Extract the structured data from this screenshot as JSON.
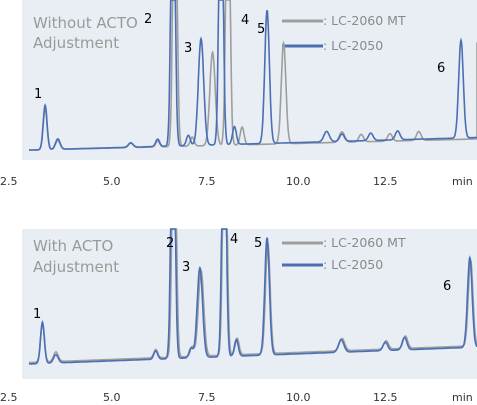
{
  "colors": {
    "lc2060": "#9e9e9e",
    "lc2050": "#4a6fb5",
    "panel": "#e9edf4"
  },
  "panels": [
    {
      "title_lines": [
        "Without ACTO",
        "Adjustment"
      ],
      "legend": [
        ": LC-2060 MT",
        ": LC-2050"
      ],
      "xticks": [
        "2.5",
        "5.0",
        "7.5",
        "10.0",
        "12.5"
      ],
      "xunit": "min",
      "peak_labels": [
        "1",
        "2",
        "3",
        "4",
        "5",
        "6"
      ]
    },
    {
      "title_lines": [
        "With ACTO",
        "Adjustment"
      ],
      "legend": [
        ": LC-2060 MT",
        ": LC-2050"
      ],
      "xticks": [
        "2.5",
        "5.0",
        "7.5",
        "10.0",
        "12.5"
      ],
      "xunit": "min",
      "peak_labels": [
        "1",
        "2",
        "3",
        "4",
        "5",
        "6"
      ]
    }
  ],
  "chart_data": [
    {
      "type": "line",
      "title": "Without ACTO Adjustment",
      "xlabel": "min",
      "ylabel": "",
      "xlim": [
        2.5,
        14.9
      ],
      "ylim": [
        0,
        100
      ],
      "grid": false,
      "legend_position": "top-right",
      "series": [
        {
          "name": "LC-2060 MT",
          "color": "#9e9e9e",
          "baseline": [
            [
              2.5,
              4
            ],
            [
              14.9,
              12
            ]
          ],
          "peaks": [
            {
              "label": "1",
              "x": 2.92,
              "h": 28,
              "w": 0.05
            },
            {
              "label": "",
              "x": 3.25,
              "h": 6,
              "w": 0.06
            },
            {
              "label": "",
              "x": 5.15,
              "h": 3,
              "w": 0.06
            },
            {
              "label": "",
              "x": 5.85,
              "h": 4,
              "w": 0.05
            },
            {
              "label": "2",
              "x": 6.3,
              "h": 220,
              "w": 0.05
            },
            {
              "label": "",
              "x": 6.75,
              "h": 6,
              "w": 0.05
            },
            {
              "label": "3",
              "x": 7.28,
              "h": 63,
              "w": 0.07
            },
            {
              "label": "4",
              "x": 7.68,
              "h": 220,
              "w": 0.05
            },
            {
              "label": "",
              "x": 8.05,
              "h": 12,
              "w": 0.05
            },
            {
              "label": "5",
              "x": 9.13,
              "h": 68,
              "w": 0.06
            },
            {
              "label": "",
              "x": 10.65,
              "h": 7,
              "w": 0.07
            },
            {
              "label": "",
              "x": 11.15,
              "h": 5,
              "w": 0.06
            },
            {
              "label": "",
              "x": 11.9,
              "h": 5,
              "w": 0.06
            },
            {
              "label": "",
              "x": 12.65,
              "h": 6,
              "w": 0.06
            },
            {
              "label": "6",
              "x": 14.42,
              "h": 65,
              "w": 0.06
            }
          ]
        },
        {
          "name": "LC-2050",
          "color": "#4a6fb5",
          "baseline": [
            [
              2.5,
              4
            ],
            [
              14.9,
              13
            ]
          ],
          "peaks": [
            {
              "label": "1",
              "x": 2.92,
              "h": 30,
              "w": 0.05
            },
            {
              "label": "",
              "x": 3.25,
              "h": 7,
              "w": 0.06
            },
            {
              "label": "",
              "x": 5.15,
              "h": 3,
              "w": 0.06
            },
            {
              "label": "",
              "x": 5.85,
              "h": 5,
              "w": 0.05
            },
            {
              "label": "2",
              "x": 6.25,
              "h": 220,
              "w": 0.05
            },
            {
              "label": "",
              "x": 6.65,
              "h": 7,
              "w": 0.05
            },
            {
              "label": "3",
              "x": 6.98,
              "h": 72,
              "w": 0.07
            },
            {
              "label": "4",
              "x": 7.5,
              "h": 220,
              "w": 0.05
            },
            {
              "label": "",
              "x": 7.85,
              "h": 12,
              "w": 0.05
            },
            {
              "label": "5",
              "x": 8.7,
              "h": 90,
              "w": 0.06
            },
            {
              "label": "",
              "x": 10.25,
              "h": 7,
              "w": 0.07
            },
            {
              "label": "",
              "x": 10.65,
              "h": 5,
              "w": 0.06
            },
            {
              "label": "",
              "x": 11.4,
              "h": 5,
              "w": 0.06
            },
            {
              "label": "",
              "x": 12.1,
              "h": 6,
              "w": 0.06
            },
            {
              "label": "6",
              "x": 13.75,
              "h": 66,
              "w": 0.06
            }
          ]
        }
      ]
    },
    {
      "type": "line",
      "title": "With ACTO Adjustment",
      "xlabel": "min",
      "ylabel": "",
      "xlim": [
        2.5,
        14.9
      ],
      "ylim": [
        0,
        100
      ],
      "grid": false,
      "legend_position": "top-right",
      "series": [
        {
          "name": "LC-2060 MT",
          "color": "#9e9e9e",
          "baseline": [
            [
              2.5,
              9
            ],
            [
              14.9,
              22
            ]
          ],
          "peaks": [
            {
              "label": "1",
              "x": 2.85,
              "h": 28,
              "w": 0.05
            },
            {
              "label": "",
              "x": 3.2,
              "h": 7,
              "w": 0.06
            },
            {
              "label": "",
              "x": 5.8,
              "h": 6,
              "w": 0.05
            },
            {
              "label": "2",
              "x": 6.28,
              "h": 220,
              "w": 0.05
            },
            {
              "label": "",
              "x": 6.75,
              "h": 7,
              "w": 0.05
            },
            {
              "label": "3",
              "x": 6.98,
              "h": 62,
              "w": 0.07
            },
            {
              "label": "4",
              "x": 7.6,
              "h": 220,
              "w": 0.05
            },
            {
              "label": "",
              "x": 7.92,
              "h": 12,
              "w": 0.05
            },
            {
              "label": "5",
              "x": 8.72,
              "h": 80,
              "w": 0.06
            },
            {
              "label": "",
              "x": 10.65,
              "h": 9,
              "w": 0.07
            },
            {
              "label": "",
              "x": 11.8,
              "h": 6,
              "w": 0.06
            },
            {
              "label": "",
              "x": 12.3,
              "h": 9,
              "w": 0.06
            },
            {
              "label": "6",
              "x": 14.0,
              "h": 62,
              "w": 0.06
            }
          ]
        },
        {
          "name": "LC-2050",
          "color": "#4a6fb5",
          "baseline": [
            [
              2.5,
              8
            ],
            [
              14.9,
              21
            ]
          ],
          "peaks": [
            {
              "label": "1",
              "x": 2.85,
              "h": 30,
              "w": 0.05
            },
            {
              "label": "",
              "x": 3.2,
              "h": 6,
              "w": 0.06
            },
            {
              "label": "",
              "x": 5.8,
              "h": 6,
              "w": 0.05
            },
            {
              "label": "2",
              "x": 6.25,
              "h": 220,
              "w": 0.05
            },
            {
              "label": "",
              "x": 6.72,
              "h": 7,
              "w": 0.05
            },
            {
              "label": "3",
              "x": 6.95,
              "h": 65,
              "w": 0.07
            },
            {
              "label": "4",
              "x": 7.58,
              "h": 220,
              "w": 0.05
            },
            {
              "label": "",
              "x": 7.9,
              "h": 12,
              "w": 0.05
            },
            {
              "label": "5",
              "x": 8.7,
              "h": 85,
              "w": 0.06
            },
            {
              "label": "",
              "x": 10.63,
              "h": 9,
              "w": 0.07
            },
            {
              "label": "",
              "x": 11.78,
              "h": 6,
              "w": 0.06
            },
            {
              "label": "",
              "x": 12.28,
              "h": 9,
              "w": 0.06
            },
            {
              "label": "6",
              "x": 13.98,
              "h": 65,
              "w": 0.06
            }
          ]
        }
      ]
    }
  ]
}
